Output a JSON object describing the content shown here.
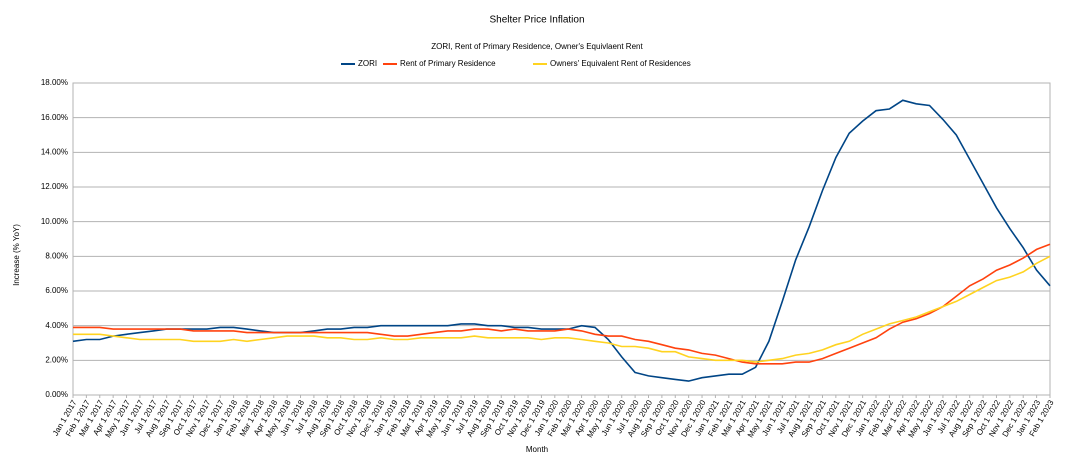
{
  "chart_data": {
    "type": "line",
    "title": "Shelter Price Inflation",
    "subtitle": "ZORI, Rent of Primary Residence, Owner's Equivlaent Rent",
    "xlabel": "Month",
    "ylabel": "Increase (% YoY)",
    "categories": [
      "Jan 1 2017",
      "Feb 1 2017",
      "Mar 1 2017",
      "Apr 1 2017",
      "May 1 2017",
      "Jun 1 2017",
      "Jul 1 2017",
      "Aug 1 2017",
      "Sep 1 2017",
      "Oct 1 2017",
      "Nov 1 2017",
      "Dec 1 2017",
      "Jan 1 2018",
      "Feb 1 2018",
      "Mar 1 2018",
      "Apr 1 2018",
      "May 1 2018",
      "Jun 1 2018",
      "Jul 1 2018",
      "Aug 1 2018",
      "Sep 1 2018",
      "Oct 1 2018",
      "Nov 1 2018",
      "Dec 1 2018",
      "Jan 1 2019",
      "Feb 1 2019",
      "Mar 1 2019",
      "Apr 1 2019",
      "May 1 2019",
      "Jun 1 2019",
      "Jul 1 2019",
      "Aug 1 2019",
      "Sep 1 2019",
      "Oct 1 2019",
      "Nov 1 2019",
      "Dec 1 2019",
      "Jan 1 2020",
      "Feb 1 2020",
      "Mar 1 2020",
      "Apr 1 2020",
      "May 1 2020",
      "Jun 1 2020",
      "Jul 1 2020",
      "Aug 1 2020",
      "Sep 1 2020",
      "Oct 1 2020",
      "Nov 1 2020",
      "Dec 1 2020",
      "Jan 1 2021",
      "Feb 1 2021",
      "Mar 1 2021",
      "Apr 1 2021",
      "May 1 2021",
      "Jun 1 2021",
      "Jul 1 2021",
      "Aug 1 2021",
      "Sep 1 2021",
      "Oct 1 2021",
      "Nov 1 2021",
      "Dec 1 2021",
      "Jan 1 2022",
      "Feb 1 2022",
      "Mar 1 2022",
      "Apr 1 2022",
      "May 1 2022",
      "Jun 1 2022",
      "Jul 1 2022",
      "Aug 1 2022",
      "Sep 1 2022",
      "Oct 1 2022",
      "Nov 1 2022",
      "Dec 1 2022",
      "Jan 1 2023",
      "Feb 1 2023"
    ],
    "series": [
      {
        "name": "ZORI",
        "color": "#004586",
        "values": [
          3.1,
          3.2,
          3.2,
          3.4,
          3.5,
          3.6,
          3.7,
          3.8,
          3.8,
          3.8,
          3.8,
          3.9,
          3.9,
          3.8,
          3.7,
          3.6,
          3.6,
          3.6,
          3.7,
          3.8,
          3.8,
          3.9,
          3.9,
          4.0,
          4.0,
          4.0,
          4.0,
          4.0,
          4.0,
          4.1,
          4.1,
          4.0,
          4.0,
          3.9,
          3.9,
          3.8,
          3.8,
          3.8,
          4.0,
          3.9,
          3.2,
          2.2,
          1.3,
          1.1,
          1.0,
          0.9,
          0.8,
          1.0,
          1.1,
          1.2,
          1.2,
          1.6,
          3.1,
          5.4,
          7.8,
          9.7,
          11.8,
          13.7,
          15.1,
          15.8,
          16.4,
          16.5,
          17.0,
          16.8,
          16.7,
          15.9,
          15.0,
          13.6,
          12.2,
          10.8,
          9.6,
          8.5,
          7.2,
          6.3
        ]
      },
      {
        "name": "Rent of Primary Residence",
        "color": "#ff420e",
        "values": [
          3.9,
          3.9,
          3.9,
          3.8,
          3.8,
          3.8,
          3.8,
          3.8,
          3.8,
          3.7,
          3.7,
          3.7,
          3.7,
          3.6,
          3.6,
          3.6,
          3.6,
          3.6,
          3.6,
          3.6,
          3.6,
          3.6,
          3.6,
          3.5,
          3.4,
          3.4,
          3.5,
          3.6,
          3.7,
          3.7,
          3.8,
          3.8,
          3.7,
          3.8,
          3.7,
          3.7,
          3.7,
          3.8,
          3.7,
          3.5,
          3.4,
          3.4,
          3.2,
          3.1,
          2.9,
          2.7,
          2.6,
          2.4,
          2.3,
          2.1,
          1.9,
          1.8,
          1.8,
          1.8,
          1.9,
          1.9,
          2.1,
          2.4,
          2.7,
          3.0,
          3.3,
          3.8,
          4.2,
          4.4,
          4.7,
          5.1,
          5.7,
          6.3,
          6.7,
          7.2,
          7.5,
          7.9,
          8.4,
          8.7
        ]
      },
      {
        "name": "Owners' Equivalent Rent of Residences",
        "color": "#ffd320",
        "values": [
          3.5,
          3.5,
          3.5,
          3.4,
          3.3,
          3.2,
          3.2,
          3.2,
          3.2,
          3.1,
          3.1,
          3.1,
          3.2,
          3.1,
          3.2,
          3.3,
          3.4,
          3.4,
          3.4,
          3.3,
          3.3,
          3.2,
          3.2,
          3.3,
          3.2,
          3.2,
          3.3,
          3.3,
          3.3,
          3.3,
          3.4,
          3.3,
          3.3,
          3.3,
          3.3,
          3.2,
          3.3,
          3.3,
          3.2,
          3.1,
          3.0,
          2.8,
          2.8,
          2.7,
          2.5,
          2.5,
          2.2,
          2.1,
          2.0,
          2.0,
          2.0,
          1.9,
          2.0,
          2.1,
          2.3,
          2.4,
          2.6,
          2.9,
          3.1,
          3.5,
          3.8,
          4.1,
          4.3,
          4.5,
          4.8,
          5.1,
          5.4,
          5.8,
          6.2,
          6.6,
          6.8,
          7.1,
          7.6,
          8.0
        ]
      }
    ],
    "ylim": [
      0,
      18
    ],
    "yticks": [
      {
        "value": 0,
        "label": "0.00%"
      },
      {
        "value": 2,
        "label": "2.00%"
      },
      {
        "value": 4,
        "label": "4.00%"
      },
      {
        "value": 6,
        "label": "6.00%"
      },
      {
        "value": 8,
        "label": "8.00%"
      },
      {
        "value": 10,
        "label": "10.00%"
      },
      {
        "value": 12,
        "label": "12.00%"
      },
      {
        "value": 14,
        "label": "14.00%"
      },
      {
        "value": 16,
        "label": "16.00%"
      },
      {
        "value": 18,
        "label": "18.00%"
      }
    ],
    "grid": true,
    "legend": "top"
  }
}
